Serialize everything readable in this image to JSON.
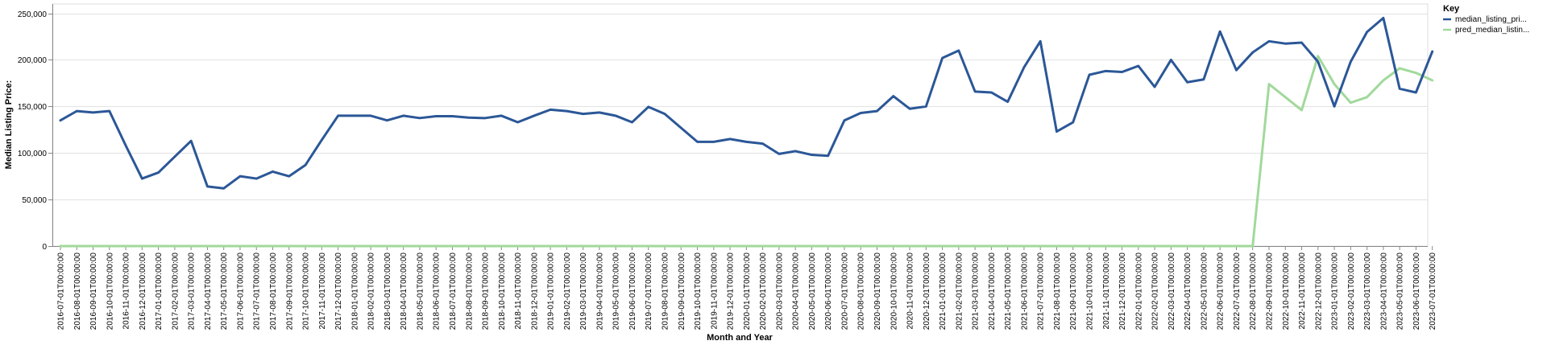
{
  "chart_data": {
    "type": "line",
    "xlabel": "Month and Year",
    "ylabel": "Median Listing Price:",
    "ylim": [
      0,
      260000
    ],
    "y_ticks": [
      0,
      50000,
      100000,
      150000,
      200000,
      250000
    ],
    "y_tick_labels": [
      "0",
      "50,000",
      "100,000",
      "150,000",
      "200,000",
      "250,000"
    ],
    "grid": true,
    "legend": {
      "title": "Key",
      "placement": "top-right"
    },
    "x": [
      "2016-07-01T00:00:00",
      "2016-08-01T00:00:00",
      "2016-09-01T00:00:00",
      "2016-10-01T00:00:00",
      "2016-11-01T00:00:00",
      "2016-12-01T00:00:00",
      "2017-01-01T00:00:00",
      "2017-02-01T00:00:00",
      "2017-03-01T00:00:00",
      "2017-04-01T00:00:00",
      "2017-05-01T00:00:00",
      "2017-06-01T00:00:00",
      "2017-07-01T00:00:00",
      "2017-08-01T00:00:00",
      "2017-09-01T00:00:00",
      "2017-10-01T00:00:00",
      "2017-11-01T00:00:00",
      "2017-12-01T00:00:00",
      "2018-01-01T00:00:00",
      "2018-02-01T00:00:00",
      "2018-03-01T00:00:00",
      "2018-04-01T00:00:00",
      "2018-05-01T00:00:00",
      "2018-06-01T00:00:00",
      "2018-07-01T00:00:00",
      "2018-08-01T00:00:00",
      "2018-09-01T00:00:00",
      "2018-10-01T00:00:00",
      "2018-11-01T00:00:00",
      "2018-12-01T00:00:00",
      "2019-01-01T00:00:00",
      "2019-02-01T00:00:00",
      "2019-03-01T00:00:00",
      "2019-04-01T00:00:00",
      "2019-05-01T00:00:00",
      "2019-06-01T00:00:00",
      "2019-07-01T00:00:00",
      "2019-08-01T00:00:00",
      "2019-09-01T00:00:00",
      "2019-10-01T00:00:00",
      "2019-11-01T00:00:00",
      "2019-12-01T00:00:00",
      "2020-01-01T00:00:00",
      "2020-02-01T00:00:00",
      "2020-03-01T00:00:00",
      "2020-04-01T00:00:00",
      "2020-05-01T00:00:00",
      "2020-06-01T00:00:00",
      "2020-07-01T00:00:00",
      "2020-08-01T00:00:00",
      "2020-09-01T00:00:00",
      "2020-10-01T00:00:00",
      "2020-11-01T00:00:00",
      "2020-12-01T00:00:00",
      "2021-01-01T00:00:00",
      "2021-02-01T00:00:00",
      "2021-03-01T00:00:00",
      "2021-04-01T00:00:00",
      "2021-05-01T00:00:00",
      "2021-06-01T00:00:00",
      "2021-07-01T00:00:00",
      "2021-08-01T00:00:00",
      "2021-09-01T00:00:00",
      "2021-10-01T00:00:00",
      "2021-11-01T00:00:00",
      "2021-12-01T00:00:00",
      "2022-01-01T00:00:00",
      "2022-02-01T00:00:00",
      "2022-03-01T00:00:00",
      "2022-04-01T00:00:00",
      "2022-05-01T00:00:00",
      "2022-06-01T00:00:00",
      "2022-07-01T00:00:00",
      "2022-08-01T00:00:00",
      "2022-09-01T00:00:00",
      "2022-10-01T00:00:00",
      "2022-11-01T00:00:00",
      "2022-12-01T00:00:00",
      "2023-01-01T00:00:00",
      "2023-02-01T00:00:00",
      "2023-03-01T00:00:00",
      "2023-04-01T00:00:00",
      "2023-05-01T00:00:00",
      "2023-06-01T00:00:00",
      "2023-07-01T00:00:00"
    ],
    "series": [
      {
        "name": "median_listing_pri...",
        "color": "#2b5797",
        "values": [
          135000,
          145000,
          143500,
          145000,
          108000,
          72500,
          79000,
          96000,
          113000,
          64000,
          62000,
          75000,
          72500,
          80000,
          75000,
          87000,
          114000,
          140000,
          140000,
          140000,
          135000,
          140000,
          137500,
          139500,
          139500,
          138000,
          137500,
          140000,
          133000,
          140000,
          146500,
          145000,
          142000,
          143500,
          140000,
          133000,
          149500,
          142000,
          127000,
          112000,
          112000,
          115000,
          112000,
          110000,
          99000,
          102000,
          98000,
          97000,
          135000,
          143000,
          145000,
          161000,
          147500,
          150000,
          202000,
          210000,
          166000,
          165000,
          155000,
          192000,
          220000,
          123000,
          133000,
          184000,
          188000,
          187000,
          193500,
          171000,
          200000,
          176000,
          179000,
          230500,
          189000,
          208000,
          220000,
          217500,
          218500,
          198000,
          150000,
          198000,
          230000,
          245000,
          169000,
          165000,
          209000
        ]
      },
      {
        "name": "pred_median_listin...",
        "color": "#a1d99b",
        "values": [
          0,
          0,
          0,
          0,
          0,
          0,
          0,
          0,
          0,
          0,
          0,
          0,
          0,
          0,
          0,
          0,
          0,
          0,
          0,
          0,
          0,
          0,
          0,
          0,
          0,
          0,
          0,
          0,
          0,
          0,
          0,
          0,
          0,
          0,
          0,
          0,
          0,
          0,
          0,
          0,
          0,
          0,
          0,
          0,
          0,
          0,
          0,
          0,
          0,
          0,
          0,
          0,
          0,
          0,
          0,
          0,
          0,
          0,
          0,
          0,
          0,
          0,
          0,
          0,
          0,
          0,
          0,
          0,
          0,
          0,
          0,
          0,
          0,
          0,
          174000,
          160000,
          146000,
          204000,
          174000,
          154000,
          160000,
          178000,
          191000,
          186000,
          178000
        ]
      }
    ]
  }
}
